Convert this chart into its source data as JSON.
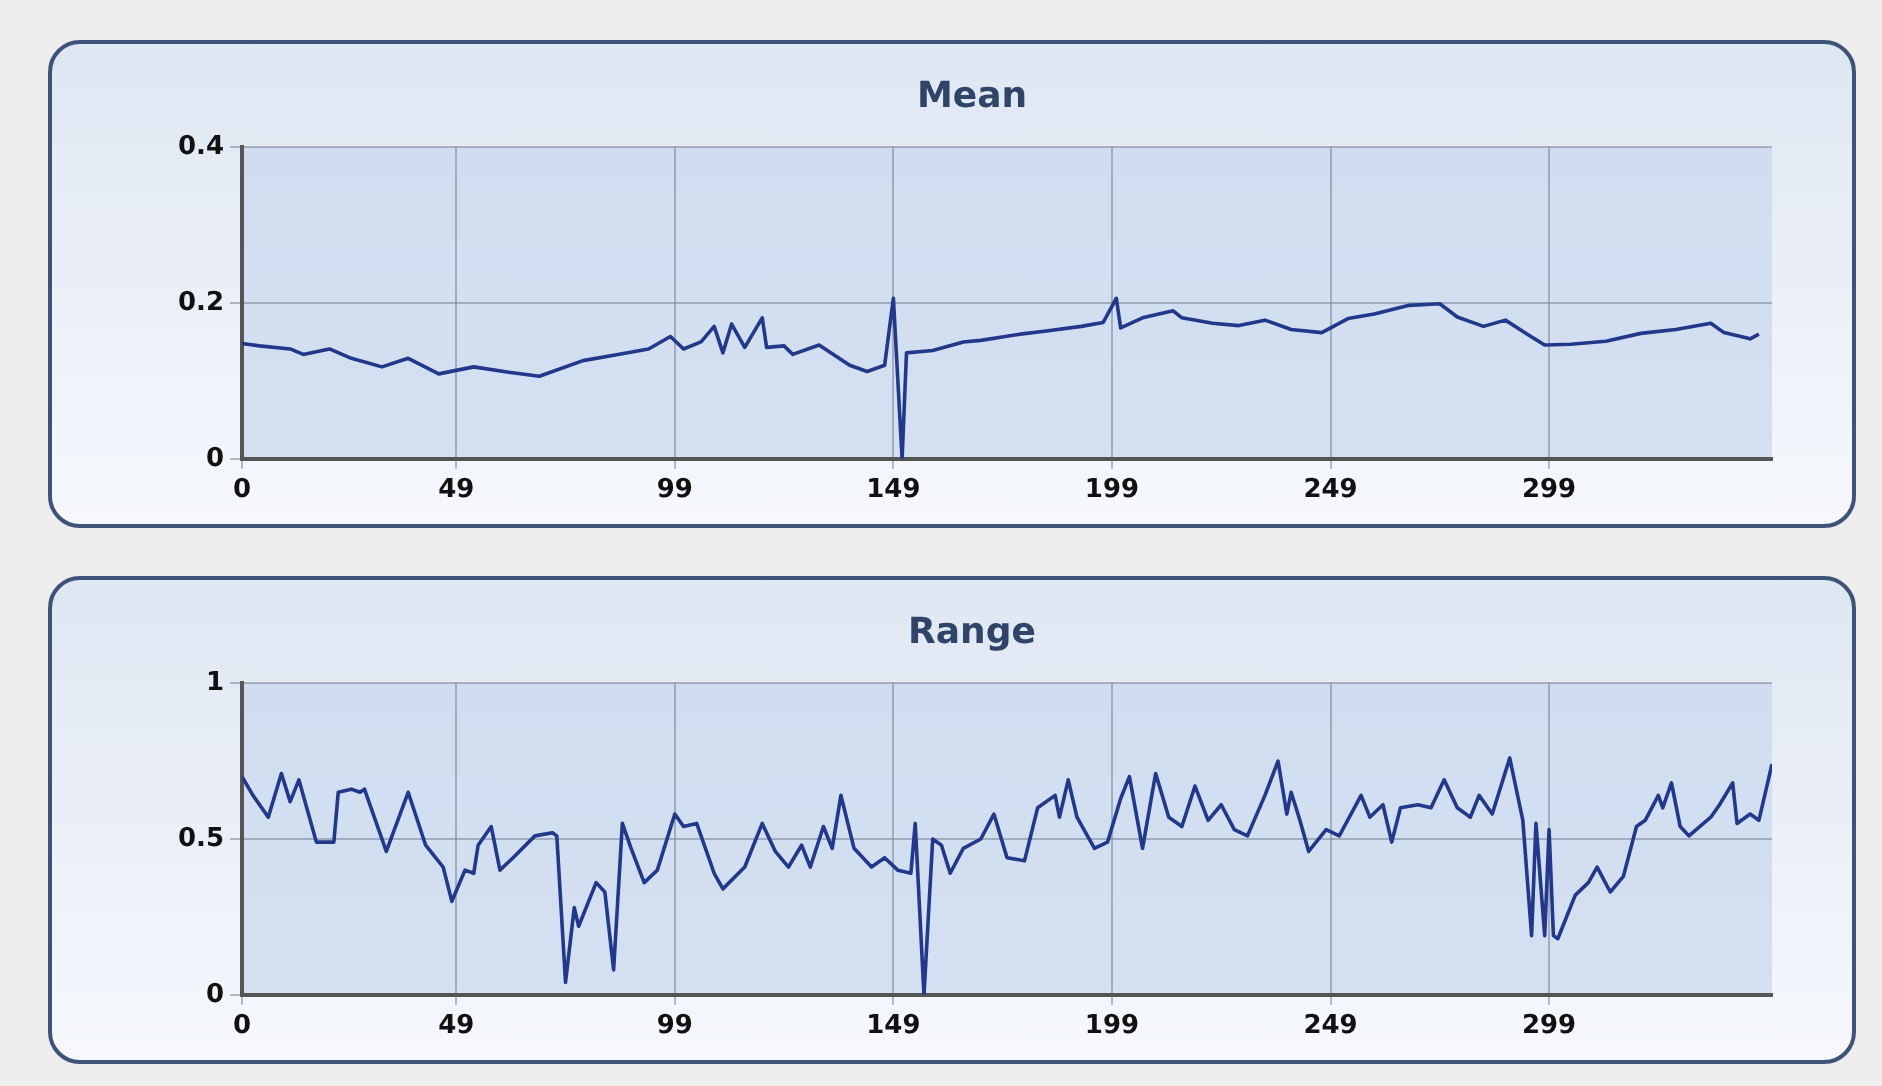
{
  "chart_data": [
    {
      "type": "line",
      "title": "Mean",
      "xlim": [
        0,
        350
      ],
      "xticks": [
        0,
        49,
        99,
        149,
        199,
        249,
        299
      ],
      "ylim": [
        0,
        0.4
      ],
      "yticks": [
        0,
        0.2,
        0.4
      ],
      "grid": true,
      "x": [
        0,
        4,
        11,
        14,
        20,
        25,
        32,
        38,
        45,
        53,
        61,
        68,
        78,
        86,
        93,
        98,
        101,
        105,
        108,
        110,
        112,
        115,
        117,
        119,
        120,
        124,
        126,
        132,
        139,
        143,
        147,
        149,
        151,
        152,
        158,
        165,
        169,
        178,
        184,
        192,
        197,
        200,
        201,
        206,
        213,
        215,
        222,
        228,
        234,
        240,
        247,
        253,
        259,
        267,
        274,
        278,
        284,
        289,
        294,
        298,
        304,
        312,
        320,
        328,
        336,
        339,
        345,
        347
      ],
      "series": [
        {
          "color": "#22388a",
          "values": [
            0.148,
            0.145,
            0.141,
            0.134,
            0.141,
            0.129,
            0.118,
            0.129,
            0.109,
            0.118,
            0.111,
            0.106,
            0.126,
            0.134,
            0.141,
            0.157,
            0.141,
            0.15,
            0.17,
            0.136,
            0.173,
            0.143,
            0.162,
            0.181,
            0.143,
            0.145,
            0.134,
            0.146,
            0.12,
            0.112,
            0.12,
            0.206,
            0,
            0.136,
            0.139,
            0.15,
            0.152,
            0.16,
            0.164,
            0.17,
            0.175,
            0.206,
            0.168,
            0.181,
            0.19,
            0.181,
            0.174,
            0.171,
            0.178,
            0.166,
            0.162,
            0.18,
            0.186,
            0.197,
            0.199,
            0.182,
            0.17,
            0.178,
            0.16,
            0.146,
            0.147,
            0.151,
            0.161,
            0.166,
            0.174,
            0.162,
            0.154,
            0.16
          ]
        }
      ]
    },
    {
      "type": "line",
      "title": "Range",
      "xlim": [
        0,
        350
      ],
      "xticks": [
        0,
        49,
        99,
        149,
        199,
        249,
        299
      ],
      "ylim": [
        0,
        1
      ],
      "yticks": [
        0,
        0.5,
        1
      ],
      "grid": true,
      "x": [
        0,
        2.5,
        6,
        9,
        11,
        13,
        17,
        21,
        22,
        25,
        27,
        28,
        33,
        38,
        42,
        46,
        48,
        51,
        53,
        54,
        57,
        59,
        62,
        67,
        71,
        72,
        74,
        76,
        77,
        81,
        83,
        85,
        87,
        89,
        92,
        95,
        99,
        101,
        104,
        108,
        110,
        115,
        119,
        122,
        125,
        128,
        130,
        133,
        135,
        137,
        140,
        144,
        147,
        150,
        153,
        154,
        156,
        158,
        160,
        162,
        165,
        169,
        172,
        175,
        179,
        182,
        186,
        187,
        189,
        191,
        195,
        198,
        201,
        203,
        206,
        209,
        212,
        215,
        218,
        221,
        224,
        227,
        230,
        234,
        237,
        239,
        240,
        242,
        244,
        248,
        251,
        256,
        258,
        261,
        263,
        265,
        269,
        272,
        275,
        278,
        281,
        283,
        286,
        290,
        293,
        295,
        296,
        298,
        299,
        300,
        301,
        305,
        308,
        310,
        313,
        316,
        319,
        321,
        324,
        325,
        327,
        329,
        331,
        336,
        338,
        341,
        342,
        345,
        347,
        350
      ],
      "series": [
        {
          "color": "#22388a",
          "values": [
            0.7,
            0.64,
            0.57,
            0.71,
            0.62,
            0.69,
            0.49,
            0.49,
            0.65,
            0.66,
            0.65,
            0.66,
            0.46,
            0.65,
            0.48,
            0.41,
            0.3,
            0.4,
            0.39,
            0.48,
            0.54,
            0.4,
            0.44,
            0.51,
            0.52,
            0.51,
            0.04,
            0.28,
            0.22,
            0.36,
            0.33,
            0.08,
            0.55,
            0.47,
            0.36,
            0.4,
            0.58,
            0.54,
            0.55,
            0.39,
            0.34,
            0.41,
            0.55,
            0.46,
            0.41,
            0.48,
            0.41,
            0.54,
            0.47,
            0.64,
            0.47,
            0.41,
            0.44,
            0.4,
            0.39,
            0.55,
            0,
            0.5,
            0.48,
            0.39,
            0.47,
            0.5,
            0.58,
            0.44,
            0.43,
            0.6,
            0.64,
            0.57,
            0.69,
            0.57,
            0.47,
            0.49,
            0.63,
            0.7,
            0.47,
            0.71,
            0.57,
            0.54,
            0.67,
            0.56,
            0.61,
            0.53,
            0.51,
            0.64,
            0.75,
            0.58,
            0.65,
            0.56,
            0.46,
            0.53,
            0.51,
            0.64,
            0.57,
            0.61,
            0.49,
            0.6,
            0.61,
            0.6,
            0.69,
            0.6,
            0.57,
            0.64,
            0.58,
            0.76,
            0.56,
            0.19,
            0.55,
            0.19,
            0.53,
            0.19,
            0.18,
            0.32,
            0.36,
            0.41,
            0.33,
            0.38,
            0.54,
            0.56,
            0.64,
            0.6,
            0.68,
            0.54,
            0.51,
            0.57,
            0.61,
            0.68,
            0.55,
            0.58,
            0.56,
            0.74
          ]
        }
      ]
    }
  ]
}
